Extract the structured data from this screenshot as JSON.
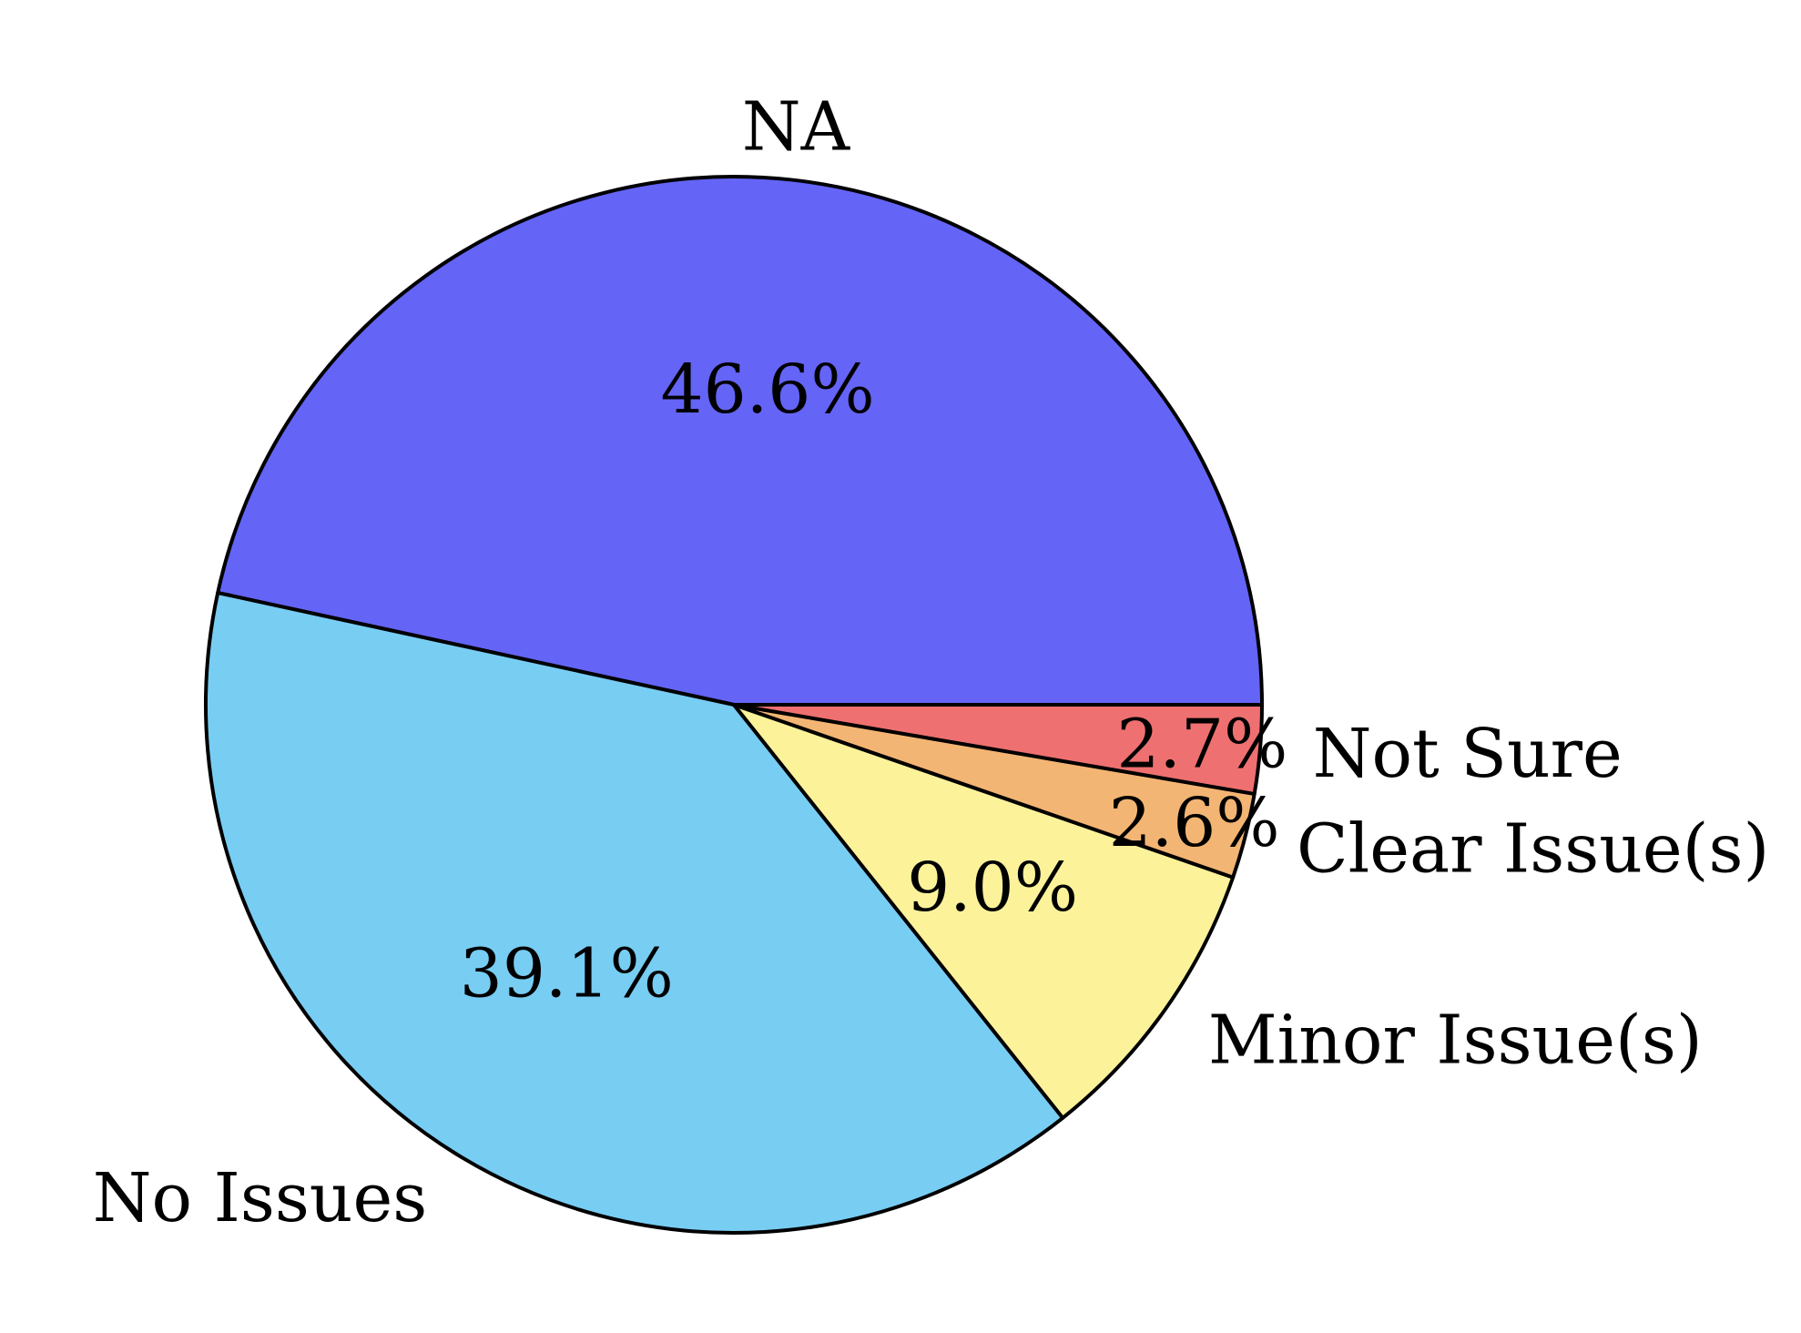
{
  "chart_data": {
    "type": "pie",
    "title": "",
    "start_angle_deg": 0,
    "direction": "counterclockwise",
    "slices": [
      {
        "label": "NA",
        "value": 46.6,
        "pct_label": "46.6%",
        "color": "#6464f6"
      },
      {
        "label": "No Issues",
        "value": 39.1,
        "pct_label": "39.1%",
        "color": "#78cdf3"
      },
      {
        "label": "Minor Issue(s)",
        "value": 9.0,
        "pct_label": "9.0%",
        "color": "#fbf29a"
      },
      {
        "label": "Clear Issue(s)",
        "value": 2.6,
        "pct_label": "2.6%",
        "color": "#f3b573"
      },
      {
        "label": "Not Sure",
        "value": 2.7,
        "pct_label": "2.7%",
        "color": "#ef7070"
      }
    ],
    "legend": "none"
  }
}
